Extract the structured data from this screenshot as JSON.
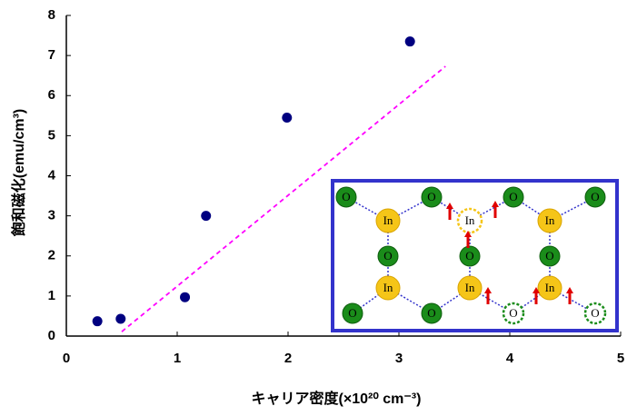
{
  "chart_data": {
    "type": "scatter",
    "x_label": "キャリア密度(×10²⁰ cm⁻³)",
    "y_label": "飽和磁化(emu/cm³)",
    "series": [
      {
        "color": "#000080",
        "x": [
          0.28,
          0.49,
          1.07,
          1.26,
          1.99,
          3.1
        ],
        "values": [
          0.37,
          0.43,
          0.97,
          3.0,
          5.45,
          7.35
        ]
      }
    ],
    "trendline": {
      "color": "#ff00ff",
      "x": [
        0.5,
        3.42
      ],
      "y": [
        0.11,
        6.73
      ]
    },
    "xlim": [
      0,
      5
    ],
    "ylim": [
      0,
      8
    ],
    "xticks": [
      0,
      1,
      2,
      3,
      4,
      5
    ],
    "yticks": [
      0,
      1,
      2,
      3,
      4,
      5,
      6,
      7,
      8
    ]
  },
  "inset": {
    "nodes": [
      "O",
      "O",
      "O",
      "O",
      "In",
      "In",
      "In",
      "O",
      "O",
      "O",
      "In",
      "In",
      "In",
      "O",
      "O",
      "O",
      "O"
    ]
  }
}
